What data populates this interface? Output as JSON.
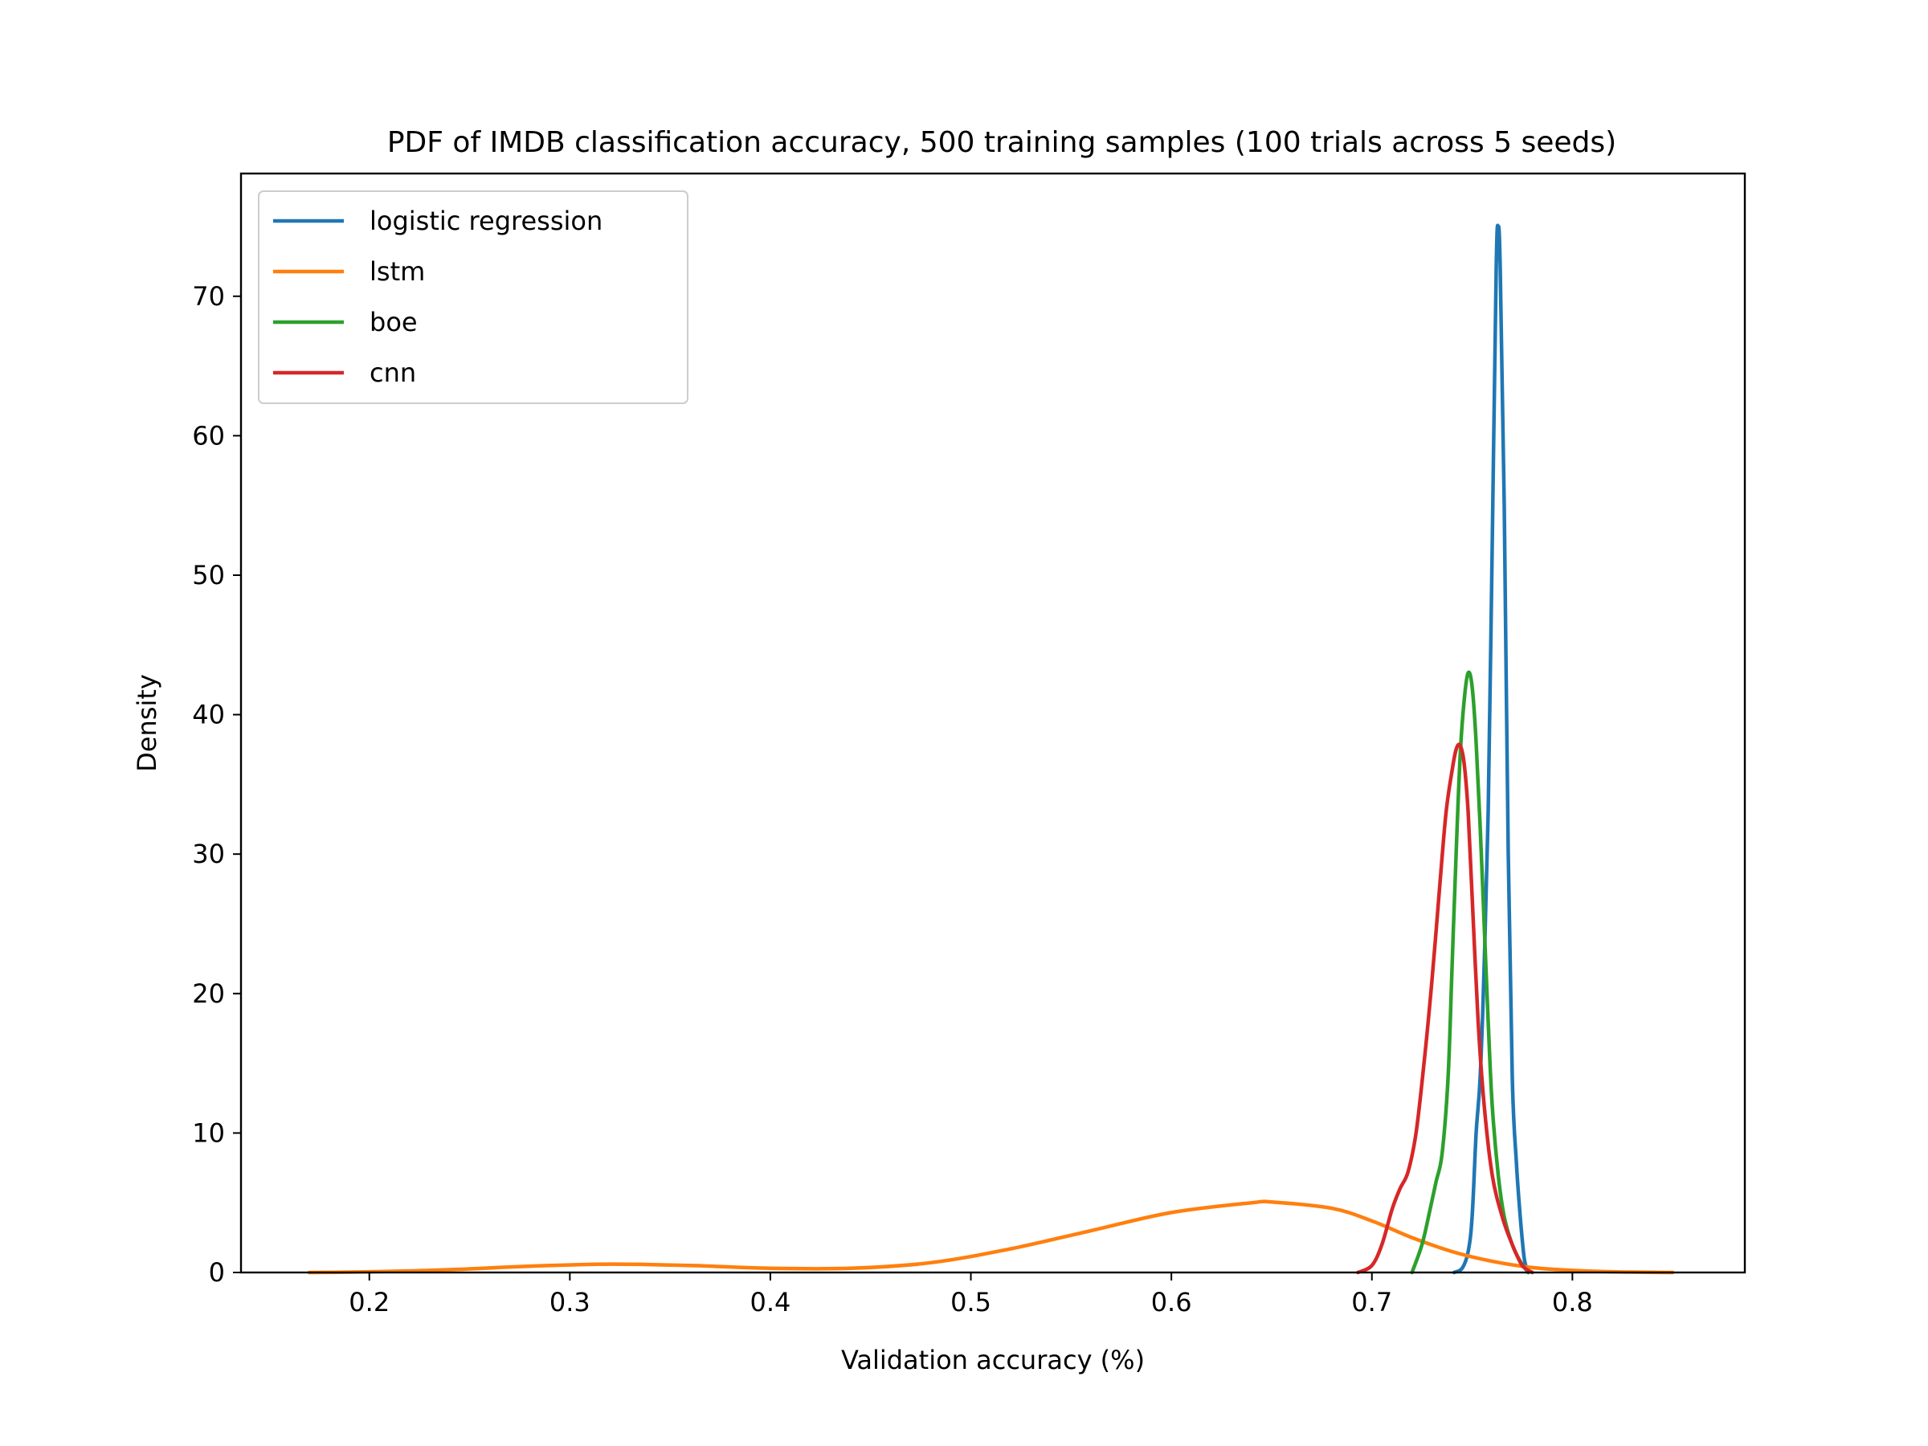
{
  "chart_data": {
    "type": "line",
    "title": "PDF of IMDB classification accuracy, 500 training samples (100 trials across 5 seeds)",
    "xlabel": "Validation accuracy (%)",
    "ylabel": "Density",
    "xlim": [
      0.136,
      0.886
    ],
    "ylim": [
      0,
      78.8
    ],
    "xticks": [
      0.2,
      0.3,
      0.4,
      0.5,
      0.6,
      0.7,
      0.8
    ],
    "xtick_labels": [
      "0.2",
      "0.3",
      "0.4",
      "0.5",
      "0.6",
      "0.7",
      "0.8"
    ],
    "yticks": [
      0,
      10,
      20,
      30,
      40,
      50,
      60,
      70
    ],
    "ytick_labels": [
      "0",
      "10",
      "20",
      "30",
      "40",
      "50",
      "60",
      "70"
    ],
    "grid": false,
    "legend": {
      "position": "top-left",
      "entries": [
        "logistic regression",
        "lstm",
        "boe",
        "cnn"
      ]
    },
    "series": [
      {
        "name": "logistic regression",
        "color": "#1f77b4",
        "x": [
          0.741,
          0.745,
          0.748,
          0.75,
          0.752,
          0.754,
          0.756,
          0.758,
          0.76,
          0.762,
          0.763,
          0.764,
          0.766,
          0.768,
          0.77,
          0.772,
          0.774,
          0.776,
          0.778
        ],
        "y": [
          0,
          0.3,
          1.5,
          4.0,
          10.0,
          14.0,
          22.0,
          33.0,
          52.0,
          72.0,
          75.0,
          72.0,
          55.0,
          30.0,
          14.0,
          8.0,
          4.0,
          1.0,
          0
        ]
      },
      {
        "name": "lstm",
        "color": "#ff7f0e",
        "x": [
          0.17,
          0.2,
          0.24,
          0.28,
          0.32,
          0.36,
          0.4,
          0.44,
          0.48,
          0.52,
          0.56,
          0.6,
          0.64,
          0.65,
          0.68,
          0.7,
          0.72,
          0.74,
          0.76,
          0.78,
          0.8,
          0.82,
          0.85
        ],
        "y": [
          0,
          0.05,
          0.2,
          0.45,
          0.6,
          0.5,
          0.3,
          0.3,
          0.7,
          1.7,
          3.0,
          4.3,
          5.0,
          5.05,
          4.6,
          3.7,
          2.5,
          1.5,
          0.8,
          0.35,
          0.15,
          0.05,
          0
        ]
      },
      {
        "name": "boe",
        "color": "#2ca02c",
        "x": [
          0.72,
          0.725,
          0.729,
          0.732,
          0.735,
          0.738,
          0.74,
          0.742,
          0.744,
          0.746,
          0.748,
          0.75,
          0.752,
          0.754,
          0.756,
          0.758,
          0.76,
          0.763,
          0.766,
          0.77,
          0.774,
          0.778
        ],
        "y": [
          0,
          2.0,
          4.5,
          6.5,
          8.5,
          14.0,
          22.0,
          30.0,
          37.0,
          41.0,
          43.0,
          42.0,
          38.0,
          32.0,
          25.0,
          18.0,
          12.0,
          7.0,
          4.0,
          2.0,
          0.8,
          0
        ]
      },
      {
        "name": "cnn",
        "color": "#d62728",
        "x": [
          0.693,
          0.7,
          0.705,
          0.71,
          0.714,
          0.718,
          0.722,
          0.726,
          0.73,
          0.734,
          0.737,
          0.74,
          0.742,
          0.744,
          0.746,
          0.748,
          0.75,
          0.753,
          0.756,
          0.76,
          0.765,
          0.77,
          0.775,
          0.78
        ],
        "y": [
          0,
          0.5,
          2.0,
          4.5,
          6.0,
          7.2,
          10.0,
          15.0,
          21.0,
          28.0,
          33.0,
          36.0,
          37.5,
          37.8,
          36.5,
          33.0,
          27.0,
          18.0,
          12.0,
          7.0,
          4.0,
          2.0,
          0.5,
          0
        ]
      }
    ]
  }
}
